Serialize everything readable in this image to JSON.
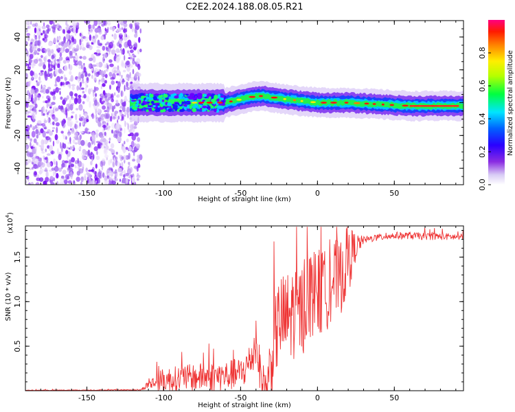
{
  "figure_title": "C2E2.2024.188.08.05.R21",
  "chart_data": [
    {
      "type": "heatmap",
      "xlabel": "Height of straight line (km)",
      "ylabel": "Frequency (Hz)",
      "xlim": [
        -190,
        95
      ],
      "ylim": [
        -50,
        50
      ],
      "xticks": [
        -150,
        -100,
        -50,
        0,
        50
      ],
      "xtick_labels": [
        "-150",
        "-100",
        "-50",
        "0",
        "50"
      ],
      "yticks": [
        -40,
        -20,
        0,
        20,
        40
      ],
      "ytick_labels": [
        "-40",
        "-20",
        "0",
        "20",
        "40"
      ],
      "colorbar": {
        "label": "Normalized spectral amplitude",
        "range": [
          0,
          1
        ],
        "ticks": [
          0.0,
          0.2,
          0.4,
          0.6,
          0.8
        ],
        "tick_labels": [
          "0.0",
          "0.2",
          "0.4",
          "0.6",
          "0.8"
        ],
        "colors": [
          "#d9ccf5",
          "#7a00ff",
          "#0000ff",
          "#00ffff",
          "#00ff00",
          "#ffff00",
          "#ff7f00",
          "#ff0000",
          "#ff0080"
        ]
      },
      "ridge": {
        "x": [
          -120,
          -100,
          -80,
          -60,
          -40,
          -35,
          -20,
          0,
          20,
          40,
          60,
          80,
          95
        ],
        "freq_center": [
          0,
          0,
          0,
          0,
          4,
          4,
          2,
          0,
          0,
          -1,
          -2,
          -2,
          -2
        ]
      },
      "noise_region_x": [
        -190,
        -120
      ]
    },
    {
      "type": "line",
      "xlabel": "Height of straight line (km)",
      "ylabel": "SNR (10 * v/v)",
      "multiplier_label": "(x10",
      "multiplier_exp": "4",
      "xlim": [
        -190,
        95
      ],
      "ylim": [
        0,
        18500
      ],
      "xticks": [
        -150,
        -100,
        -50,
        0,
        50
      ],
      "xtick_labels": [
        "-150",
        "-100",
        "-50",
        "0",
        "50"
      ],
      "yticks": [
        5000,
        10000,
        15000
      ],
      "ytick_labels": [
        "0.5",
        "1.0",
        "1.5"
      ],
      "color": "#ee3333",
      "envelope": {
        "x": [
          -190,
          -115,
          -110,
          -100,
          -80,
          -60,
          -50,
          -45,
          -40,
          -36,
          -33,
          -30,
          -25,
          -20,
          -15,
          -10,
          -5,
          0,
          5,
          10,
          15,
          20,
          25,
          30,
          40,
          50,
          60,
          70,
          80,
          95
        ],
        "y": [
          50,
          100,
          800,
          1500,
          1800,
          2000,
          2300,
          3300,
          5500,
          1500,
          800,
          4500,
          9000,
          9000,
          10000,
          10000,
          12000,
          12000,
          12000,
          13500,
          13500,
          15500,
          16500,
          17000,
          17300,
          17500,
          17500,
          17400,
          17400,
          17300
        ]
      },
      "spread": {
        "x": [
          -190,
          -115,
          -110,
          -100,
          -50,
          -40,
          -33,
          -30,
          -20,
          0,
          20,
          25,
          30,
          95
        ],
        "y": [
          40,
          60,
          500,
          1400,
          1800,
          2500,
          2000,
          4500,
          5500,
          5000,
          4000,
          1500,
          400,
          400
        ]
      }
    }
  ]
}
